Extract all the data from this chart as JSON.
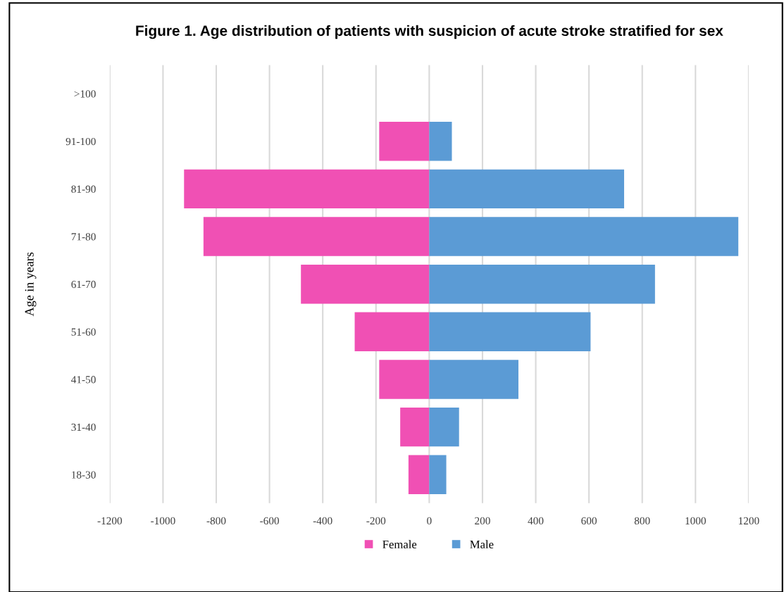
{
  "chart_data": {
    "type": "bar",
    "orientation": "horizontal",
    "stacked": true,
    "title": "Figure 1. Age distribution of patients with suspicion of acute stroke stratified for sex",
    "ylabel": "Age in years",
    "categories": [
      ">100",
      "91-100",
      "81-90",
      "71-80",
      "61-70",
      "51-60",
      "41-50",
      "31-40",
      "18-30"
    ],
    "series": [
      {
        "name": "Female",
        "color": "#f050b4",
        "values": [
          0,
          -188,
          -921,
          -848,
          -482,
          -280,
          -188,
          -109,
          -78
        ]
      },
      {
        "name": "Male",
        "color": "#5b9bd5",
        "values": [
          0,
          85,
          732,
          1161,
          848,
          606,
          335,
          112,
          64
        ]
      }
    ],
    "xlim": [
      -1200,
      1200
    ],
    "xticks": [
      -1200,
      -1000,
      -800,
      -600,
      -400,
      -200,
      0,
      200,
      400,
      600,
      800,
      1000,
      1200
    ],
    "grid": "x",
    "legend": "bottom"
  }
}
